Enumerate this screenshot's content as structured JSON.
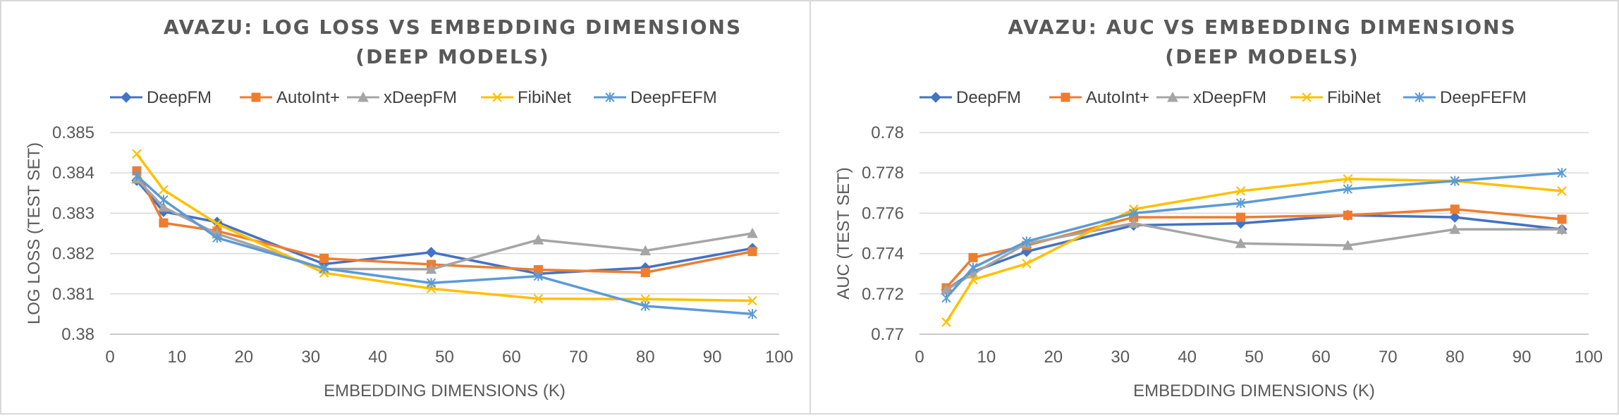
{
  "chart_data": [
    {
      "type": "line",
      "title_lines": [
        "AVAZU: LOG LOSS VS EMBEDDING DIMENSIONS",
        "(DEEP MODELS)"
      ],
      "xlabel": "EMBEDDING DIMENSIONS (K)",
      "ylabel": "LOG LOSS (TEST SET)",
      "xlim": [
        0,
        100
      ],
      "ylim": [
        0.38,
        0.385
      ],
      "x_ticks": [
        0,
        10,
        20,
        30,
        40,
        50,
        60,
        70,
        80,
        90,
        100
      ],
      "x_tick_labels": [
        "0",
        "10",
        "20",
        "30",
        "40",
        "50",
        "60",
        "70",
        "80",
        "90",
        "100"
      ],
      "y_ticks": [
        0.38,
        0.381,
        0.382,
        0.383,
        0.384,
        0.385
      ],
      "y_tick_labels": [
        "0.38",
        "0.381",
        "0.382",
        "0.383",
        "0.384",
        "0.385"
      ],
      "grid": true,
      "legend_position": "top",
      "x": [
        4,
        8,
        16,
        32,
        48,
        64,
        80,
        96
      ],
      "series": [
        {
          "name": "DeepFM",
          "color": "#4472c4",
          "marker": "diamond",
          "values": [
            0.38381,
            0.38304,
            0.38278,
            0.38174,
            0.38203,
            0.3815,
            0.38165,
            0.38213
          ]
        },
        {
          "name": "AutoInt+",
          "color": "#ed7d31",
          "marker": "square",
          "values": [
            0.38405,
            0.38276,
            0.38256,
            0.38188,
            0.38173,
            0.3816,
            0.38153,
            0.38205
          ]
        },
        {
          "name": "xDeepFM",
          "color": "#a5a5a5",
          "marker": "triangle",
          "values": [
            0.38385,
            0.38315,
            0.38249,
            0.38162,
            0.38161,
            0.38234,
            0.38207,
            0.3825
          ]
        },
        {
          "name": "FibiNet",
          "color": "#ffc000",
          "marker": "x",
          "values": [
            0.38447,
            0.38358,
            0.38274,
            0.38152,
            0.38113,
            0.38088,
            0.38087,
            0.38083
          ]
        },
        {
          "name": "DeepFEFM",
          "color": "#5b9bd5",
          "marker": "asterisk",
          "values": [
            0.38393,
            0.38333,
            0.38239,
            0.38163,
            0.38127,
            0.38144,
            0.3807,
            0.3805
          ]
        }
      ]
    },
    {
      "type": "line",
      "title_lines": [
        "AVAZU: AUC VS EMBEDDING DIMENSIONS",
        "(DEEP MODELS)"
      ],
      "xlabel": "EMBEDDING DIMENSIONS (K)",
      "ylabel": "AUC (TEST SET)",
      "xlim": [
        0,
        100
      ],
      "ylim": [
        0.77,
        0.78
      ],
      "x_ticks": [
        0,
        10,
        20,
        30,
        40,
        50,
        60,
        70,
        80,
        90,
        100
      ],
      "x_tick_labels": [
        "0",
        "10",
        "20",
        "30",
        "40",
        "50",
        "60",
        "70",
        "80",
        "90",
        "100"
      ],
      "y_ticks": [
        0.77,
        0.772,
        0.774,
        0.776,
        0.778,
        0.78
      ],
      "y_tick_labels": [
        "0.77",
        "0.772",
        "0.774",
        "0.776",
        "0.778",
        "0.78"
      ],
      "grid": true,
      "legend_position": "top",
      "x": [
        4,
        8,
        16,
        32,
        48,
        64,
        80,
        96
      ],
      "series": [
        {
          "name": "DeepFM",
          "color": "#4472c4",
          "marker": "diamond",
          "values": [
            0.7722,
            0.7731,
            0.7741,
            0.7754,
            0.7755,
            0.7759,
            0.7758,
            0.7752
          ]
        },
        {
          "name": "AutoInt+",
          "color": "#ed7d31",
          "marker": "square",
          "values": [
            0.7723,
            0.7738,
            0.7744,
            0.7758,
            0.7758,
            0.7759,
            0.7762,
            0.7757
          ]
        },
        {
          "name": "xDeepFM",
          "color": "#a5a5a5",
          "marker": "triangle",
          "values": [
            0.7722,
            0.773,
            0.7745,
            0.7755,
            0.7745,
            0.7744,
            0.7752,
            0.7752
          ]
        },
        {
          "name": "FibiNet",
          "color": "#ffc000",
          "marker": "x",
          "values": [
            0.7706,
            0.7727,
            0.7735,
            0.7762,
            0.7771,
            0.7777,
            0.7776,
            0.7771
          ]
        },
        {
          "name": "DeepFEFM",
          "color": "#5b9bd5",
          "marker": "asterisk",
          "values": [
            0.7718,
            0.7733,
            0.7746,
            0.776,
            0.7765,
            0.7772,
            0.7776,
            0.778
          ]
        }
      ]
    }
  ]
}
